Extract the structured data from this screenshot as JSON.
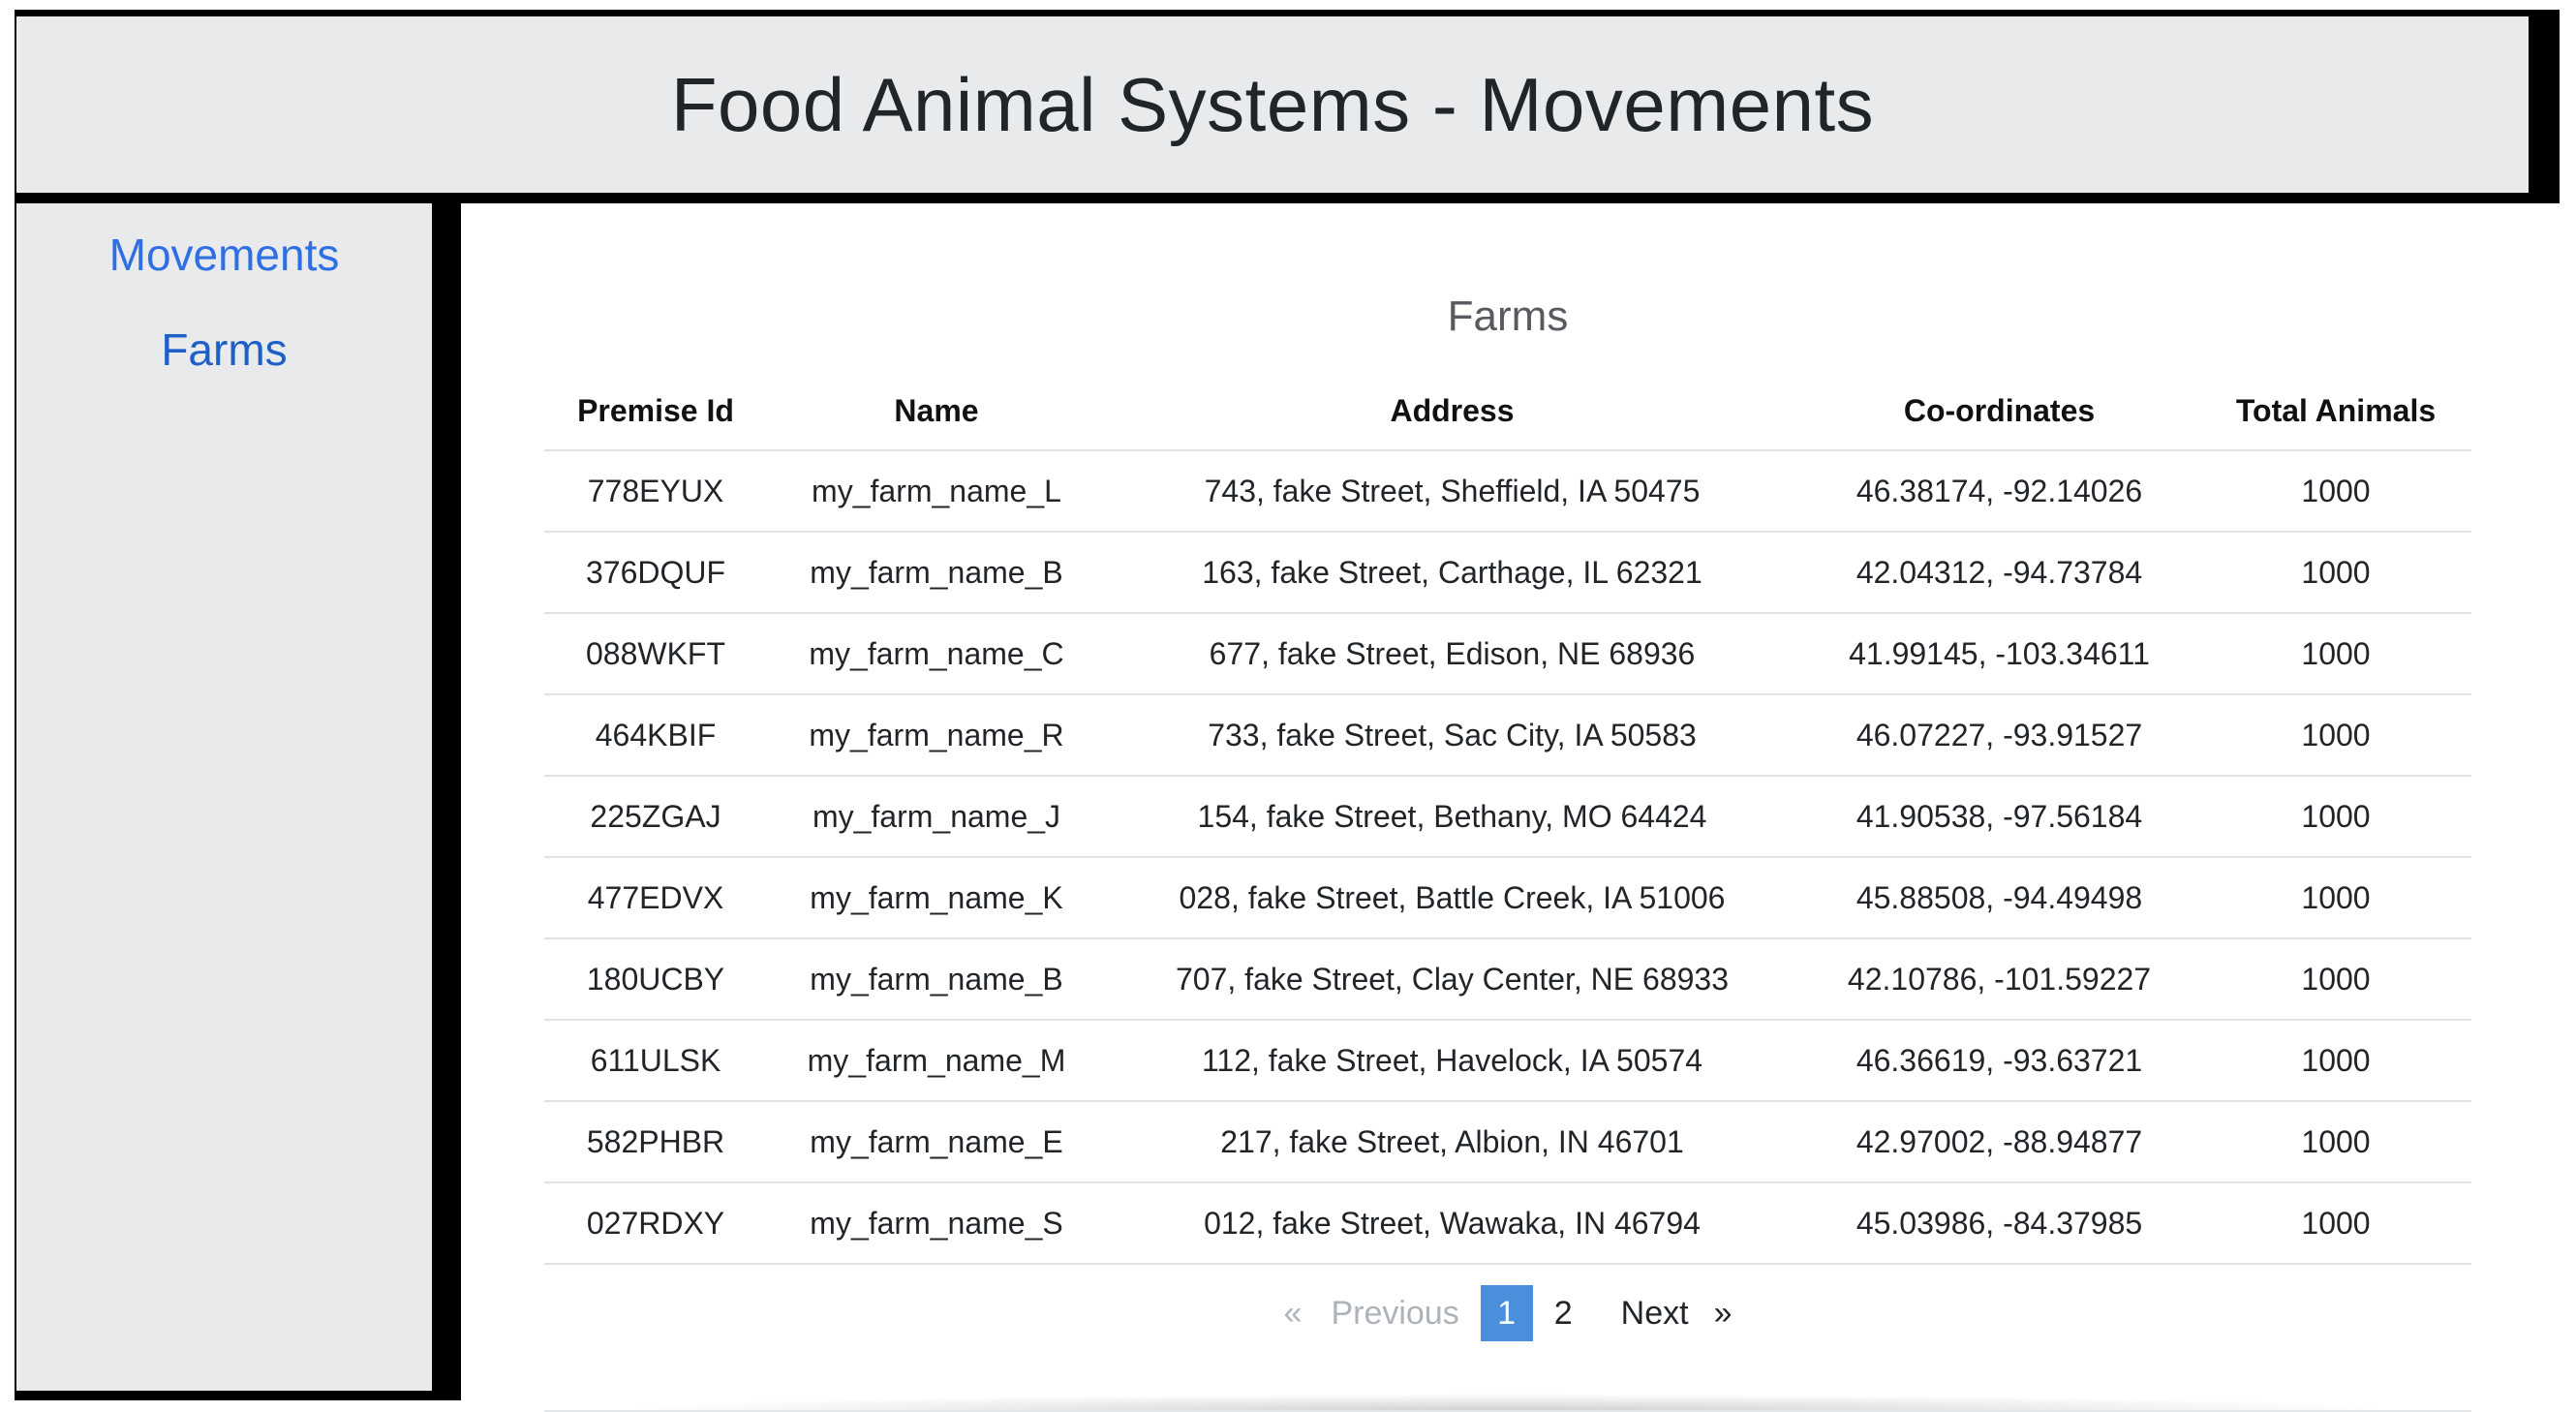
{
  "header": {
    "title": "Food Animal Systems - Movements"
  },
  "sidebar": {
    "items": [
      {
        "label": "Movements"
      },
      {
        "label": "Farms"
      }
    ]
  },
  "main": {
    "caption": "Farms",
    "columns": [
      "Premise Id",
      "Name",
      "Address",
      "Co-ordinates",
      "Total Animals"
    ],
    "rows": [
      [
        "778EYUX",
        "my_farm_name_L",
        "743, fake Street, Sheffield, IA 50475",
        "46.38174, -92.14026",
        "1000"
      ],
      [
        "376DQUF",
        "my_farm_name_B",
        "163, fake Street, Carthage, IL 62321",
        "42.04312, -94.73784",
        "1000"
      ],
      [
        "088WKFT",
        "my_farm_name_C",
        "677, fake Street, Edison, NE 68936",
        "41.99145, -103.34611",
        "1000"
      ],
      [
        "464KBIF",
        "my_farm_name_R",
        "733, fake Street, Sac City, IA 50583",
        "46.07227, -93.91527",
        "1000"
      ],
      [
        "225ZGAJ",
        "my_farm_name_J",
        "154, fake Street, Bethany, MO 64424",
        "41.90538, -97.56184",
        "1000"
      ],
      [
        "477EDVX",
        "my_farm_name_K",
        "028, fake Street, Battle Creek, IA 51006",
        "45.88508, -94.49498",
        "1000"
      ],
      [
        "180UCBY",
        "my_farm_name_B",
        "707, fake Street, Clay Center, NE 68933",
        "42.10786, -101.59227",
        "1000"
      ],
      [
        "611ULSK",
        "my_farm_name_M",
        "112, fake Street, Havelock, IA 50574",
        "46.36619, -93.63721",
        "1000"
      ],
      [
        "582PHBR",
        "my_farm_name_E",
        "217, fake Street, Albion, IN 46701",
        "42.97002, -88.94877",
        "1000"
      ],
      [
        "027RDXY",
        "my_farm_name_S",
        "012, fake Street, Wawaka, IN 46794",
        "45.03986, -84.37985",
        "1000"
      ]
    ]
  },
  "pagination": {
    "prev_arrow": "«",
    "prev_label": "Previous",
    "pages": [
      "1",
      "2"
    ],
    "current_page": "1",
    "next_label": "Next",
    "next_arrow": "»"
  }
}
